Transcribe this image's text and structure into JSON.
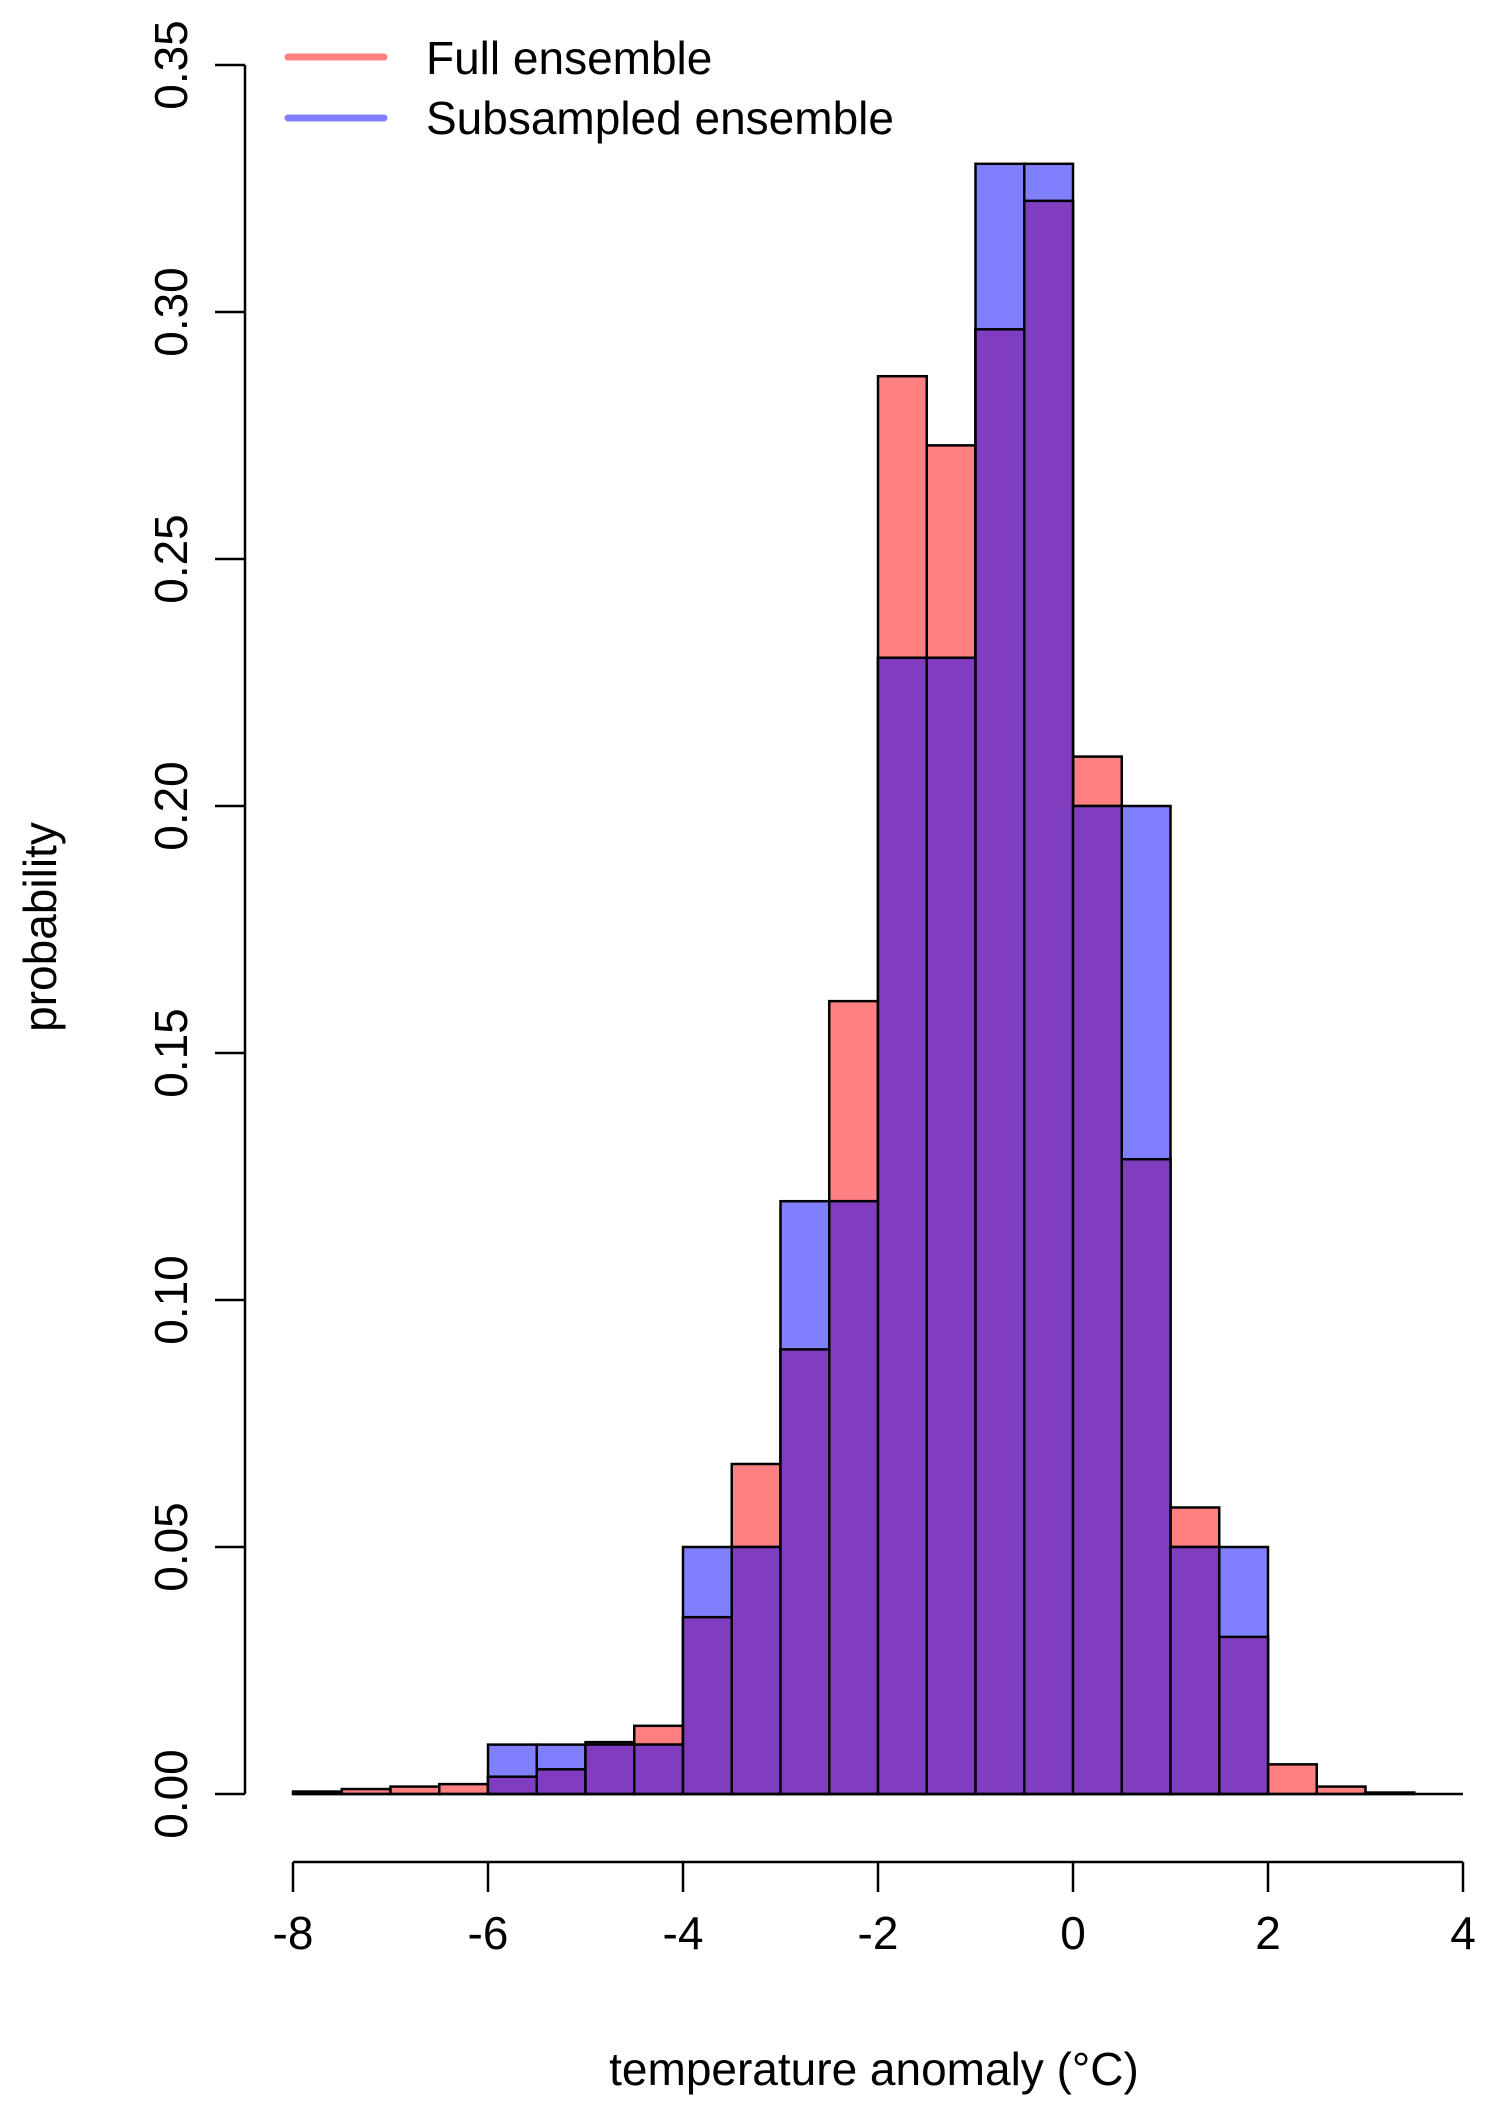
{
  "chart_data": {
    "type": "bar",
    "subtype": "overlaid-histogram",
    "xlabel": "temperature anomaly (°C)",
    "ylabel": "probability",
    "xlim": [
      -8,
      4
    ],
    "ylim": [
      0,
      0.35
    ],
    "xticks": [
      "-8",
      "-6",
      "-4",
      "-2",
      "0",
      "2",
      "4"
    ],
    "yticks": [
      "0.00",
      "0.05",
      "0.10",
      "0.15",
      "0.20",
      "0.25",
      "0.30",
      "0.35"
    ],
    "bin_width": 0.5,
    "bins_start": [
      -8.0,
      -7.5,
      -7.0,
      -6.5,
      -6.0,
      -5.5,
      -5.0,
      -4.5,
      -4.0,
      -3.5,
      -3.0,
      -2.5,
      -2.0,
      -1.5,
      -1.0,
      -0.5,
      0.0,
      0.5,
      1.0,
      1.5,
      2.0,
      2.5,
      3.0
    ],
    "legend_position": "top-left",
    "grid": false,
    "series": [
      {
        "name": "Full ensemble",
        "color": "#ff8080",
        "values": [
          0.0005,
          0.001,
          0.0015,
          0.002,
          0.0035,
          0.005,
          0.0105,
          0.0138,
          0.0358,
          0.0668,
          0.09,
          0.1605,
          0.287,
          0.273,
          0.2965,
          0.3225,
          0.21,
          0.1285,
          0.058,
          0.0318,
          0.006,
          0.0015,
          0.0003
        ]
      },
      {
        "name": "Subsampled ensemble",
        "color": "#8080ff",
        "values": [
          0,
          0,
          0,
          0,
          0.01,
          0.01,
          0.01,
          0.01,
          0.05,
          0.05,
          0.12,
          0.12,
          0.23,
          0.23,
          0.33,
          0.33,
          0.2,
          0.2,
          0.05,
          0.05,
          0,
          0,
          0
        ]
      }
    ],
    "overlap_color": "#803dc0"
  }
}
